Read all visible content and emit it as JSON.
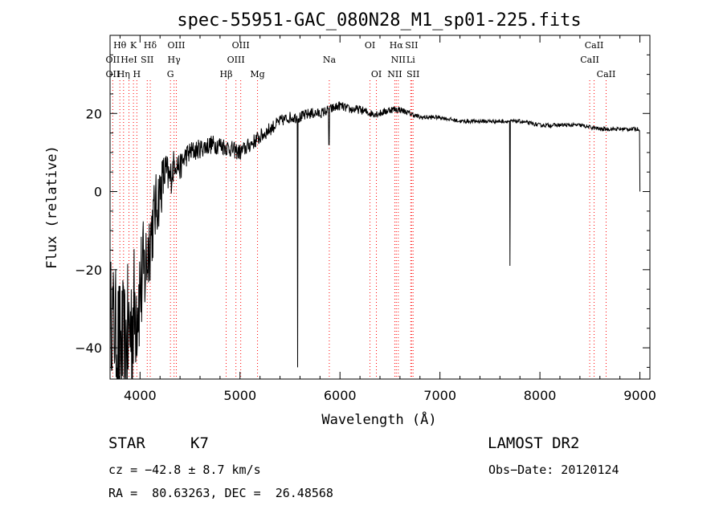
{
  "chart_data": {
    "type": "line",
    "title": "spec-55951-GAC_080N28_M1_sp01-225.fits",
    "xlabel": "Wavelength (Å)",
    "ylabel": "Flux (relative)",
    "xlim": [
      3700,
      9100
    ],
    "ylim": [
      -48,
      40
    ],
    "x_ticks": [
      4000,
      5000,
      6000,
      7000,
      8000,
      9000
    ],
    "y_ticks": [
      -40,
      -20,
      0,
      20
    ],
    "series": [
      {
        "x": [
          3700,
          3750,
          3800,
          3850,
          3900,
          3950,
          4000,
          4050,
          4100,
          4150,
          4200,
          4250,
          4300,
          4350,
          4400,
          4450,
          4500,
          4600,
          4700,
          4800,
          4900,
          5000,
          5100,
          5200,
          5300,
          5400,
          5500,
          5600,
          5700,
          5800,
          5900,
          6000,
          6100,
          6200,
          6300,
          6400,
          6500,
          6600,
          6700,
          6800,
          6900,
          7000,
          7200,
          7400,
          7600,
          7800,
          8000,
          8200,
          8400,
          8600,
          8800,
          9000
        ],
        "y": [
          -30,
          -35,
          -40,
          -42,
          -35,
          -30,
          -25,
          -20,
          -12,
          -5,
          0,
          5,
          3,
          8,
          6,
          9,
          10,
          11,
          12,
          12,
          11,
          10,
          12,
          14,
          16,
          18,
          19,
          19,
          20,
          20,
          21,
          22,
          21,
          21,
          20,
          20,
          21,
          21,
          20,
          19,
          19,
          19,
          18,
          18,
          18,
          18,
          17,
          17,
          17,
          16,
          16,
          16
        ],
        "noise": [
          14,
          16,
          18,
          20,
          20,
          18,
          16,
          14,
          11,
          9,
          8,
          6,
          5,
          4,
          3.5,
          3,
          3,
          2.5,
          2.5,
          2.5,
          2.2,
          2.2,
          2,
          2,
          1.8,
          1.6,
          1.5,
          1.5,
          1.5,
          1.3,
          1.3,
          1.2,
          1.1,
          1.1,
          1,
          1,
          1,
          0.8,
          0.7,
          0.6,
          0.6,
          0.5,
          0.5,
          0.5,
          0.5,
          0.5,
          0.5,
          0.5,
          0.5,
          0.5,
          0.5,
          0.5
        ]
      }
    ],
    "spikes": [
      {
        "x": 5577,
        "y": -45
      },
      {
        "x": 5890,
        "y": 12
      },
      {
        "x": 7700,
        "y": -19
      },
      {
        "x": 9000,
        "y": 0
      }
    ],
    "spectral_lines": [
      {
        "label": "Hθ",
        "x": 3798,
        "row": 1
      },
      {
        "label": "K",
        "x": 3934,
        "row": 1
      },
      {
        "label": "Hδ",
        "x": 4102,
        "row": 1
      },
      {
        "label": "OIII",
        "x": 4363,
        "row": 1
      },
      {
        "label": "OIII",
        "x": 5007,
        "row": 1
      },
      {
        "label": "OI",
        "x": 6300,
        "row": 1
      },
      {
        "label": "Hα",
        "x": 6563,
        "row": 1
      },
      {
        "label": "SII",
        "x": 6716,
        "row": 1
      },
      {
        "label": "CaII",
        "x": 8542,
        "row": 1
      },
      {
        "label": "OII",
        "x": 3727,
        "row": 2
      },
      {
        "label": "HeI",
        "x": 3889,
        "row": 2
      },
      {
        "label": "SII",
        "x": 4072,
        "row": 2
      },
      {
        "label": "Hγ",
        "x": 4340,
        "row": 2
      },
      {
        "label": "OIII",
        "x": 4959,
        "row": 2
      },
      {
        "label": "Na",
        "x": 5893,
        "row": 2
      },
      {
        "label": "NII",
        "x": 6583,
        "row": 2
      },
      {
        "label": "Li",
        "x": 6708,
        "row": 2
      },
      {
        "label": "CaII",
        "x": 8498,
        "row": 2
      },
      {
        "label": "OII",
        "x": 3727,
        "row": 3
      },
      {
        "label": "Hη",
        "x": 3835,
        "row": 3
      },
      {
        "label": "H",
        "x": 3968,
        "row": 3
      },
      {
        "label": "G",
        "x": 4304,
        "row": 3
      },
      {
        "label": "Hβ",
        "x": 4861,
        "row": 3
      },
      {
        "label": "Mg",
        "x": 5175,
        "row": 3
      },
      {
        "label": "OI",
        "x": 6364,
        "row": 3
      },
      {
        "label": "NII",
        "x": 6548,
        "row": 3
      },
      {
        "label": "SII",
        "x": 6731,
        "row": 3
      },
      {
        "label": "CaII",
        "x": 8662,
        "row": 3
      }
    ],
    "line_color": "#000000",
    "marker_color": "#ff0000"
  },
  "info": {
    "class": "STAR",
    "subclass": "K7",
    "survey": "LAMOST DR2",
    "cz": "cz = −42.8 ± 8.7 km/s",
    "obs_date": "Obs−Date: 20120124",
    "coords": "RA =  80.63263, DEC =  26.48568"
  }
}
